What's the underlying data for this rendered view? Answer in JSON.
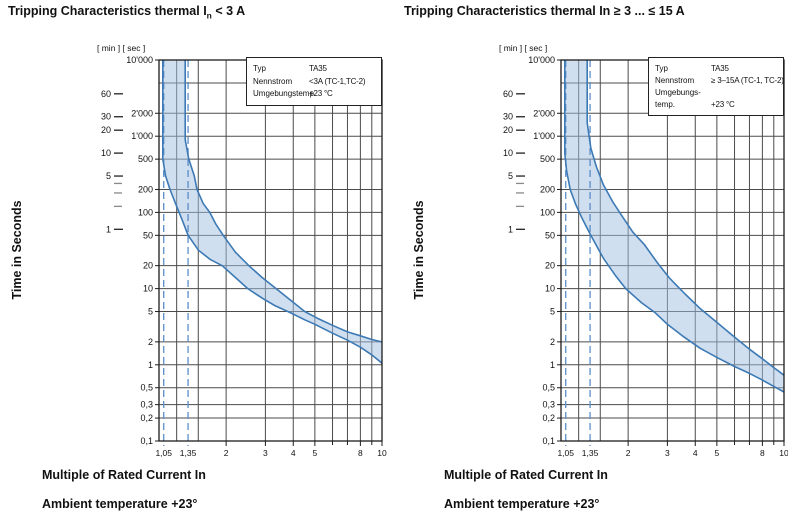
{
  "colors": {
    "grid": "#4b4b4b",
    "border": "#1c1c1c",
    "curve": "#3d7ab5",
    "band_base": "#9fc0df",
    "dashed": "#5b8dc8",
    "minor_dash": "#8a8a8a"
  },
  "charts": [
    {
      "title": {
        "before": "Tripping Characteristics thermal I",
        "sub": "n",
        "after": " < 3 A"
      },
      "scale_header": "[ min ] [ sec ]",
      "y_axis_title": "Time in Seconds",
      "x_axis_title": "Multiple of Rated Current In",
      "footnote": "Ambient temperature +23°",
      "legend": {
        "rows": [
          {
            "label": "Typ",
            "value": "TA35"
          },
          {
            "label": "Nennstrom",
            "value": "<3A (TC-1,TC-2)"
          },
          {
            "label": "Umgebungstemp.",
            "value": "+23 °C"
          }
        ]
      },
      "chart_data": {
        "type": "area",
        "title": "Tripping Characteristics thermal In < 3 A",
        "xlabel": "Multiple of Rated Current In",
        "ylabel": "Time in Seconds",
        "x_scale": "log",
        "y_scale": "log",
        "xlim": [
          1,
          10
        ],
        "ylim": [
          0.1,
          10000
        ],
        "x_tick_labels": [
          "1,05",
          "1,35",
          "2",
          "3",
          "4",
          "5",
          "8",
          "10"
        ],
        "x_tick_values": [
          1.05,
          1.35,
          2,
          3,
          4,
          5,
          8,
          10
        ],
        "x_minor_ticks": [
          6,
          7,
          9
        ],
        "x_gridlines": [
          1.2,
          1.5,
          2,
          3,
          4,
          5,
          6,
          7,
          8,
          9
        ],
        "x_dashed_lines": [
          1.05,
          1.35
        ],
        "y_gridlines": [
          5000,
          2000,
          1000,
          500,
          200,
          100,
          50,
          20,
          10,
          5,
          2,
          1,
          0.5,
          0.3,
          0.2
        ],
        "y_tick_labels": [
          [
            "10'000",
            10000
          ],
          [
            "2'000",
            2000
          ],
          [
            "1'000",
            1000
          ],
          [
            "500",
            500
          ],
          [
            "200",
            200
          ],
          [
            "100",
            100
          ],
          [
            "50",
            50
          ],
          [
            "20",
            20
          ],
          [
            "10",
            10
          ],
          [
            "5",
            5
          ],
          [
            "2",
            2
          ],
          [
            "1",
            1
          ],
          [
            "0,5",
            0.5
          ],
          [
            "0,3",
            0.3
          ],
          [
            "0,2",
            0.2
          ],
          [
            "0,1",
            0.1
          ]
        ],
        "min_scale_labeled": [
          [
            "60",
            3600
          ],
          [
            "30",
            1800
          ],
          [
            "20",
            1200
          ],
          [
            "10",
            600
          ],
          [
            "5",
            300
          ],
          [
            "1",
            60
          ]
        ],
        "min_scale_unlabeled": [
          240,
          180,
          120
        ],
        "series": [
          {
            "name": "min tripping time curve",
            "points": [
              [
                1.04,
                10000
              ],
              [
                1.04,
                500
              ],
              [
                1.07,
                300
              ],
              [
                1.12,
                200
              ],
              [
                1.2,
                120
              ],
              [
                1.27,
                80
              ],
              [
                1.35,
                50
              ],
              [
                1.5,
                32
              ],
              [
                1.7,
                24
              ],
              [
                1.92,
                20
              ],
              [
                2.2,
                14
              ],
              [
                2.5,
                10
              ],
              [
                2.9,
                7.5
              ],
              [
                3.3,
                6
              ],
              [
                3.9,
                4.8
              ],
              [
                4.5,
                3.9
              ],
              [
                5,
                3.4
              ],
              [
                6,
                2.6
              ],
              [
                7,
                2.1
              ],
              [
                8,
                1.7
              ],
              [
                9,
                1.35
              ],
              [
                10,
                1.05
              ]
            ]
          },
          {
            "name": "max tripping time curve",
            "points": [
              [
                1.31,
                10000
              ],
              [
                1.31,
                900
              ],
              [
                1.36,
                500
              ],
              [
                1.44,
                300
              ],
              [
                1.48,
                200
              ],
              [
                1.58,
                130
              ],
              [
                1.69,
                100
              ],
              [
                1.8,
                70
              ],
              [
                1.94,
                50
              ],
              [
                2.2,
                30
              ],
              [
                2.53,
                20
              ],
              [
                2.9,
                14
              ],
              [
                3.35,
                10
              ],
              [
                3.9,
                7
              ],
              [
                4.5,
                5
              ],
              [
                5.2,
                4
              ],
              [
                6,
                3.3
              ],
              [
                7,
                2.7
              ],
              [
                8,
                2.4
              ],
              [
                9,
                2.15
              ],
              [
                10,
                2.0
              ]
            ]
          }
        ]
      }
    },
    {
      "title": {
        "before": "Tripping Characteristics thermal In ≥ 3 ... ≤ 15 A",
        "sub": "",
        "after": ""
      },
      "scale_header": "[ min ] [ sec ]",
      "y_axis_title": "Time in Seconds",
      "x_axis_title": "Multiple of Rated Current In",
      "footnote": "Ambient temperature +23°",
      "legend": {
        "rows": [
          {
            "label": "Typ",
            "value": "TA35"
          },
          {
            "label": "Nennstrom",
            "value": "≥ 3–15A (TC-1, TC-2)"
          },
          {
            "label": "Umgebungs-",
            "value": ""
          },
          {
            "label": "temp.",
            "value": "+23 °C"
          }
        ]
      },
      "chart_data": {
        "type": "area",
        "title": "Tripping Characteristics thermal In ≥ 3 ... ≤ 15 A",
        "xlabel": "Multiple of Rated Current In",
        "ylabel": "Time in Seconds",
        "x_scale": "log",
        "y_scale": "log",
        "xlim": [
          1,
          10
        ],
        "ylim": [
          0.1,
          10000
        ],
        "x_tick_labels": [
          "1,05",
          "1,35",
          "2",
          "3",
          "4",
          "5",
          "8",
          "10"
        ],
        "x_tick_values": [
          1.05,
          1.35,
          2,
          3,
          4,
          5,
          8,
          10
        ],
        "x_minor_ticks": [
          6,
          7,
          9
        ],
        "x_gridlines": [
          1.2,
          1.5,
          2,
          3,
          4,
          5,
          6,
          7,
          8,
          9
        ],
        "x_dashed_lines": [
          1.05,
          1.35
        ],
        "y_gridlines": [
          5000,
          2000,
          1000,
          500,
          200,
          100,
          50,
          20,
          10,
          5,
          2,
          1,
          0.5,
          0.3,
          0.2
        ],
        "y_tick_labels": [
          [
            "10'000",
            10000
          ],
          [
            "2'000",
            2000
          ],
          [
            "1'000",
            1000
          ],
          [
            "500",
            500
          ],
          [
            "200",
            200
          ],
          [
            "100",
            100
          ],
          [
            "50",
            50
          ],
          [
            "20",
            20
          ],
          [
            "10",
            10
          ],
          [
            "5",
            5
          ],
          [
            "2",
            2
          ],
          [
            "1",
            1
          ],
          [
            "0,5",
            0.5
          ],
          [
            "0,3",
            0.3
          ],
          [
            "0,2",
            0.2
          ],
          [
            "0,1",
            0.1
          ]
        ],
        "min_scale_labeled": [
          [
            "60",
            3600
          ],
          [
            "30",
            1800
          ],
          [
            "20",
            1200
          ],
          [
            "10",
            600
          ],
          [
            "5",
            300
          ],
          [
            "1",
            60
          ]
        ],
        "min_scale_unlabeled": [
          240,
          180,
          120
        ],
        "series": [
          {
            "name": "min tripping time curve",
            "points": [
              [
                1.04,
                10000
              ],
              [
                1.04,
                600
              ],
              [
                1.06,
                350
              ],
              [
                1.1,
                200
              ],
              [
                1.16,
                130
              ],
              [
                1.24,
                85
              ],
              [
                1.35,
                52
              ],
              [
                1.55,
                25
              ],
              [
                1.75,
                15
              ],
              [
                1.95,
                10
              ],
              [
                2.3,
                6.5
              ],
              [
                2.65,
                4.8
              ],
              [
                3.0,
                3.4
              ],
              [
                3.5,
                2.4
              ],
              [
                4.2,
                1.65
              ],
              [
                5.0,
                1.25
              ],
              [
                6.0,
                0.95
              ],
              [
                7.0,
                0.77
              ],
              [
                8.0,
                0.63
              ],
              [
                9.0,
                0.52
              ],
              [
                10,
                0.44
              ]
            ]
          },
          {
            "name": "max tripping time curve",
            "points": [
              [
                1.31,
                10000
              ],
              [
                1.31,
                1500
              ],
              [
                1.36,
                700
              ],
              [
                1.44,
                400
              ],
              [
                1.55,
                230
              ],
              [
                1.7,
                140
              ],
              [
                1.9,
                85
              ],
              [
                2.1,
                55
              ],
              [
                2.36,
                38
              ],
              [
                2.7,
                22
              ],
              [
                3.05,
                14
              ],
              [
                3.3,
                11
              ],
              [
                3.6,
                8.5
              ],
              [
                4.2,
                5.5
              ],
              [
                5,
                3.6
              ],
              [
                5.9,
                2.4
              ],
              [
                7,
                1.6
              ],
              [
                8,
                1.2
              ],
              [
                9,
                0.92
              ],
              [
                10,
                0.73
              ]
            ]
          }
        ]
      }
    }
  ]
}
